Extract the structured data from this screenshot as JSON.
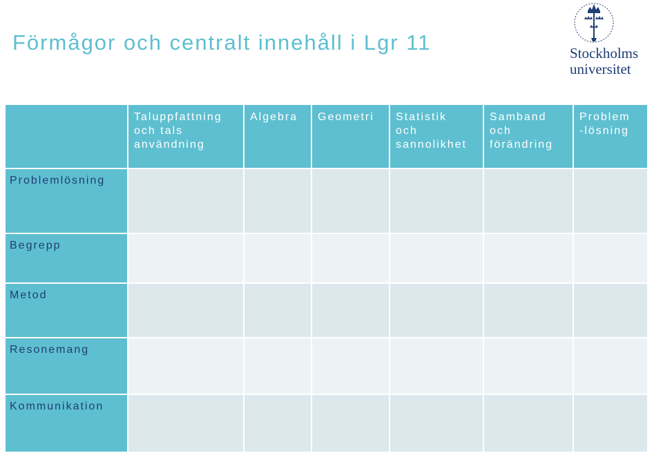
{
  "title": "Förmågor och centralt innehåll i Lgr 11",
  "logo": {
    "ring_text": "UNIVERSITET STOCKHOLMS",
    "line1": "Stockholms",
    "line2": "universitet"
  },
  "table": {
    "corner": "",
    "columns": [
      "Taluppfattning\noch tals\nanvändning",
      "Algebra",
      "Geometri",
      "Statistik\noch\nsannolikhet",
      "Samband\noch\nförändring",
      "Problem\n-lösning"
    ],
    "rows": [
      "Problemlösning",
      "Begrepp",
      "Metod",
      "Resonemang",
      "Kommunikation"
    ]
  },
  "colors": {
    "accent": "#5ebfd0",
    "row_label_text": "#1f3e73",
    "cell_dark": "#dde8ed",
    "cell_light": "#edf3f5",
    "logo_blue": "#1f3e73"
  }
}
